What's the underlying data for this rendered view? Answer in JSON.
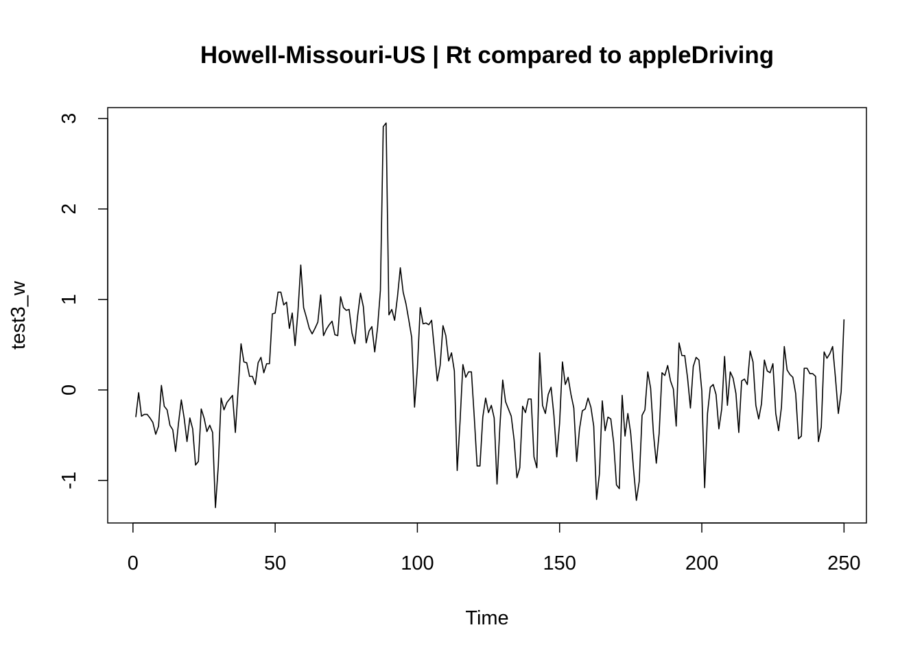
{
  "chart_data": {
    "type": "line",
    "title": "Howell-Missouri-US | Rt compared to appleDriving",
    "xlabel": "Time",
    "ylabel": "test3_w",
    "xlim": [
      1,
      248
    ],
    "ylim": [
      -1.3,
      2.95
    ],
    "x_ticks": [
      0,
      50,
      100,
      150,
      200,
      250
    ],
    "x_tick_labels": [
      "0",
      "50",
      "100",
      "150",
      "200",
      "250"
    ],
    "y_ticks": [
      -1,
      0,
      1,
      2,
      3
    ],
    "y_tick_labels": [
      "-1",
      "0",
      "1",
      "2",
      "3"
    ],
    "grid": false,
    "legend": "none",
    "line_color": "#000000",
    "series": [
      {
        "x_start": 1,
        "values": [
          -0.3,
          -0.03,
          -0.29,
          -0.27,
          -0.27,
          -0.31,
          -0.36,
          -0.49,
          -0.4,
          0.05,
          -0.18,
          -0.22,
          -0.39,
          -0.44,
          -0.68,
          -0.37,
          -0.11,
          -0.31,
          -0.57,
          -0.31,
          -0.43,
          -0.83,
          -0.79,
          -0.21,
          -0.31,
          -0.46,
          -0.39,
          -0.47,
          -1.3,
          -0.84,
          -0.09,
          -0.22,
          -0.14,
          -0.1,
          -0.06,
          -0.47,
          0.02,
          0.51,
          0.31,
          0.3,
          0.15,
          0.15,
          0.06,
          0.3,
          0.36,
          0.19,
          0.29,
          0.29,
          0.84,
          0.85,
          1.08,
          1.08,
          0.94,
          0.97,
          0.68,
          0.85,
          0.49,
          0.86,
          1.38,
          0.91,
          0.8,
          0.68,
          0.62,
          0.68,
          0.75,
          1.05,
          0.6,
          0.67,
          0.72,
          0.76,
          0.61,
          0.6,
          1.03,
          0.91,
          0.88,
          0.89,
          0.63,
          0.51,
          0.82,
          1.07,
          0.92,
          0.52,
          0.65,
          0.7,
          0.42,
          0.69,
          1.1,
          2.91,
          2.95,
          0.83,
          0.89,
          0.77,
          1.03,
          1.35,
          1.08,
          0.95,
          0.77,
          0.58,
          -0.19,
          0.24,
          0.91,
          0.73,
          0.74,
          0.72,
          0.77,
          0.44,
          0.1,
          0.27,
          0.71,
          0.6,
          0.32,
          0.41,
          0.21,
          -0.89,
          -0.35,
          0.28,
          0.14,
          0.2,
          0.2,
          -0.3,
          -0.84,
          -0.84,
          -0.3,
          -0.09,
          -0.25,
          -0.17,
          -0.31,
          -1.04,
          -0.41,
          0.11,
          -0.13,
          -0.21,
          -0.29,
          -0.55,
          -0.97,
          -0.86,
          -0.18,
          -0.25,
          -0.1,
          -0.1,
          -0.74,
          -0.86,
          0.41,
          -0.17,
          -0.26,
          -0.05,
          0.03,
          -0.28,
          -0.74,
          -0.37,
          0.31,
          0.06,
          0.14,
          -0.05,
          -0.2,
          -0.79,
          -0.43,
          -0.23,
          -0.21,
          -0.09,
          -0.19,
          -0.4,
          -1.21,
          -0.93,
          -0.12,
          -0.45,
          -0.3,
          -0.32,
          -0.58,
          -1.05,
          -1.09,
          -0.06,
          -0.51,
          -0.26,
          -0.48,
          -0.88,
          -1.22,
          -1.01,
          -0.28,
          -0.22,
          0.2,
          0.02,
          -0.48,
          -0.81,
          -0.48,
          0.19,
          0.16,
          0.27,
          0.1,
          0.01,
          -0.4,
          0.52,
          0.38,
          0.38,
          0.13,
          -0.2,
          0.26,
          0.36,
          0.33,
          -0.01,
          -1.08,
          -0.26,
          0.03,
          0.06,
          -0.05,
          -0.43,
          -0.21,
          0.37,
          -0.17,
          0.2,
          0.13,
          -0.04,
          -0.47,
          0.1,
          0.12,
          0.06,
          0.43,
          0.31,
          -0.17,
          -0.32,
          -0.15,
          0.33,
          0.21,
          0.19,
          0.29,
          -0.26,
          -0.45,
          -0.19,
          0.48,
          0.22,
          0.17,
          0.14,
          -0.04,
          -0.54,
          -0.51,
          0.24,
          0.24,
          0.18,
          0.18,
          0.15,
          -0.57,
          -0.41,
          0.42,
          0.35,
          0.4,
          0.48,
          0.13,
          -0.26,
          -0.02,
          0.78
        ]
      }
    ]
  }
}
